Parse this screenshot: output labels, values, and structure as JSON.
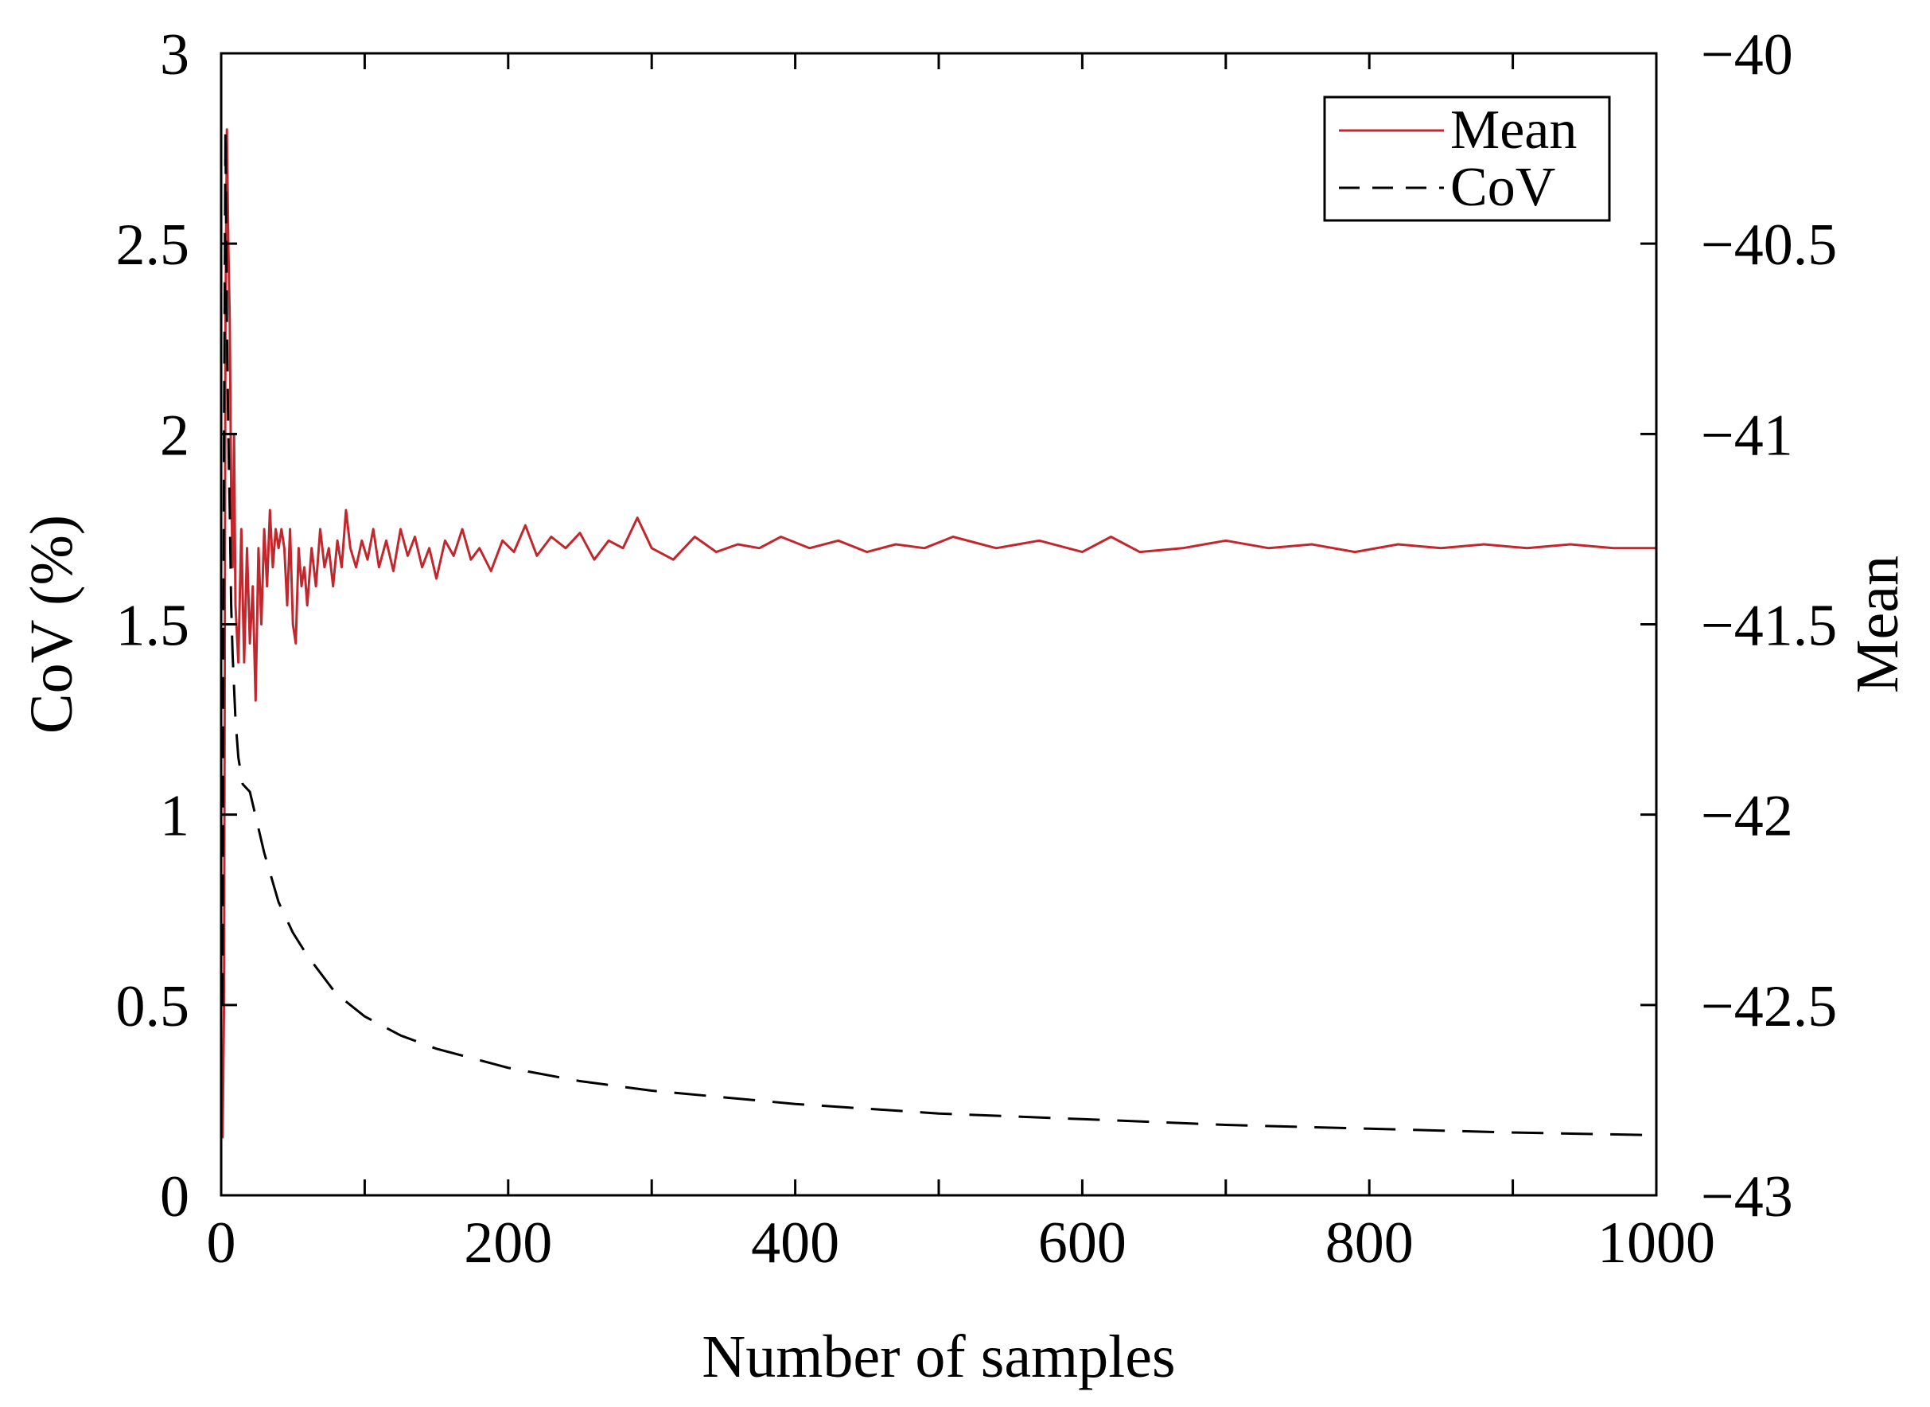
{
  "chart_data": {
    "type": "line",
    "title": "",
    "xlabel": "Number of samples",
    "ylabel_left": "CoV (%)",
    "ylabel_right": "Mean",
    "xlim": [
      0,
      1000
    ],
    "ylim_left": [
      0,
      3
    ],
    "ylim_right": [
      -43,
      -40
    ],
    "grid": false,
    "legend_position": "top-right",
    "xticks": [
      {
        "value": 0,
        "label": "0"
      },
      {
        "value": 200,
        "label": "200"
      },
      {
        "value": 400,
        "label": "400"
      },
      {
        "value": 600,
        "label": "600"
      },
      {
        "value": 800,
        "label": "800"
      },
      {
        "value": 1000,
        "label": "1000"
      }
    ],
    "xticks_minor": [
      100,
      300,
      500,
      700,
      900
    ],
    "yticks_left": [
      {
        "value": 0,
        "label": "0"
      },
      {
        "value": 0.5,
        "label": "0.5"
      },
      {
        "value": 1,
        "label": "1"
      },
      {
        "value": 1.5,
        "label": "1.5"
      },
      {
        "value": 2,
        "label": "2"
      },
      {
        "value": 2.5,
        "label": "2.5"
      },
      {
        "value": 3,
        "label": "3"
      }
    ],
    "yticks_right": [
      {
        "value": -43,
        "label": "−43"
      },
      {
        "value": -42.5,
        "label": "−42.5"
      },
      {
        "value": -42,
        "label": "−42"
      },
      {
        "value": -41.5,
        "label": "−41.5"
      },
      {
        "value": -41,
        "label": "−41"
      },
      {
        "value": -40.5,
        "label": "−40.5"
      },
      {
        "value": -40,
        "label": "−40"
      }
    ],
    "series": [
      {
        "name": "Mean",
        "axis": "right",
        "color": "#c1272d",
        "style": "solid",
        "x": [
          1,
          2,
          3,
          4,
          5,
          6,
          7,
          8,
          9,
          10,
          12,
          14,
          16,
          18,
          20,
          22,
          24,
          26,
          28,
          30,
          32,
          34,
          36,
          38,
          40,
          42,
          44,
          46,
          48,
          50,
          52,
          54,
          56,
          58,
          60,
          63,
          66,
          69,
          72,
          75,
          78,
          81,
          84,
          87,
          90,
          94,
          98,
          102,
          106,
          110,
          115,
          120,
          125,
          130,
          135,
          140,
          145,
          150,
          156,
          162,
          168,
          174,
          180,
          188,
          196,
          204,
          212,
          220,
          230,
          240,
          250,
          260,
          270,
          280,
          290,
          300,
          315,
          330,
          345,
          360,
          375,
          390,
          410,
          430,
          450,
          470,
          490,
          510,
          540,
          570,
          600,
          620,
          640,
          670,
          700,
          730,
          760,
          790,
          820,
          850,
          880,
          910,
          940,
          970,
          1000
        ],
        "values": [
          -42.85,
          -42.5,
          -40.7,
          -40.2,
          -40.5,
          -40.7,
          -41.15,
          -41.35,
          -41.0,
          -41.45,
          -41.6,
          -41.25,
          -41.6,
          -41.3,
          -41.55,
          -41.4,
          -41.7,
          -41.3,
          -41.5,
          -41.25,
          -41.4,
          -41.2,
          -41.35,
          -41.25,
          -41.3,
          -41.25,
          -41.3,
          -41.45,
          -41.25,
          -41.5,
          -41.55,
          -41.3,
          -41.4,
          -41.35,
          -41.45,
          -41.3,
          -41.4,
          -41.25,
          -41.35,
          -41.3,
          -41.4,
          -41.28,
          -41.35,
          -41.2,
          -41.3,
          -41.35,
          -41.28,
          -41.33,
          -41.25,
          -41.35,
          -41.28,
          -41.36,
          -41.25,
          -41.32,
          -41.27,
          -41.35,
          -41.3,
          -41.38,
          -41.28,
          -41.32,
          -41.25,
          -41.33,
          -41.3,
          -41.36,
          -41.28,
          -41.31,
          -41.24,
          -41.32,
          -41.27,
          -41.3,
          -41.26,
          -41.33,
          -41.28,
          -41.3,
          -41.22,
          -41.3,
          -41.33,
          -41.27,
          -41.31,
          -41.29,
          -41.3,
          -41.27,
          -41.3,
          -41.28,
          -41.31,
          -41.29,
          -41.3,
          -41.27,
          -41.3,
          -41.28,
          -41.31,
          -41.27,
          -41.31,
          -41.3,
          -41.28,
          -41.3,
          -41.29,
          -41.31,
          -41.29,
          -41.3,
          -41.29,
          -41.3,
          -41.29,
          -41.3,
          -41.3
        ]
      },
      {
        "name": "CoV",
        "axis": "left",
        "color": "#000000",
        "style": "dashed",
        "x": [
          1,
          2,
          3,
          4,
          5,
          6,
          7,
          8,
          10,
          12,
          15,
          20,
          25,
          30,
          40,
          50,
          60,
          80,
          100,
          125,
          150,
          200,
          250,
          300,
          400,
          500,
          600,
          700,
          800,
          900,
          1000
        ],
        "values": [
          0.5,
          2.0,
          2.8,
          2.3,
          2.0,
          1.8,
          1.55,
          1.42,
          1.25,
          1.15,
          1.08,
          1.06,
          0.98,
          0.9,
          0.77,
          0.69,
          0.63,
          0.53,
          0.47,
          0.42,
          0.385,
          0.335,
          0.3,
          0.275,
          0.24,
          0.215,
          0.2,
          0.185,
          0.175,
          0.165,
          0.158
        ]
      }
    ]
  }
}
